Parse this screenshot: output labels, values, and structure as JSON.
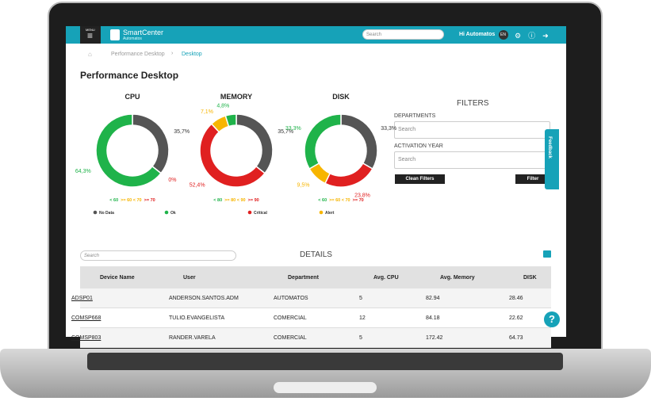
{
  "header": {
    "menu": "MENU",
    "brand": "SmartCenter",
    "brand_sub": "Automatos",
    "search": "Search",
    "user": "Hi Automatos",
    "lang": "EN"
  },
  "breadcrumb": {
    "items": [
      "Performance Desktop",
      "Desktop"
    ]
  },
  "title": "Performance Desktop",
  "donuts": [
    {
      "title": "CPU",
      "values": [
        35.7,
        0,
        0,
        64.3
      ],
      "value_labels": [
        "35,7%",
        "0%",
        null,
        "64,3%"
      ],
      "colors": [
        "#555555",
        "#e02020",
        "#f7b500",
        "#1fb34a"
      ],
      "thresholds": [
        "< 60",
        ">= 60 < 70",
        ">= 70"
      ],
      "legend": [
        {
          "name": "No Data",
          "color": "#555555"
        },
        {
          "name": "Ok",
          "color": "#1fb34a"
        }
      ]
    },
    {
      "title": "MEMORY",
      "values": [
        35.7,
        52.4,
        7.1,
        4.8
      ],
      "value_labels": [
        "35,7%",
        "52,4%",
        "7,1%",
        "4,8%"
      ],
      "colors": [
        "#555555",
        "#e02020",
        "#f7b500",
        "#1fb34a"
      ],
      "thresholds": [
        "< 80",
        ">= 80 < 90",
        ">= 90"
      ],
      "legend": [
        {
          "name": "Critical",
          "color": "#e02020"
        }
      ]
    },
    {
      "title": "DISK",
      "values": [
        33.3,
        23.8,
        9.5,
        33.3
      ],
      "value_labels": [
        "33,3%",
        "23,8%",
        "9,5%",
        "33,3%"
      ],
      "colors": [
        "#555555",
        "#e02020",
        "#f7b500",
        "#1fb34a"
      ],
      "thresholds": [
        "< 60",
        ">= 60 < 70",
        ">= 70"
      ],
      "legend": [
        {
          "name": "Alert",
          "color": "#f7b500"
        }
      ]
    }
  ],
  "filters": {
    "title": "FILTERS",
    "departments": "DEPARTMENTS",
    "departments_search": "Search",
    "year": "ACTIVATION YEAR",
    "year_search": "Search",
    "clean": "Clean Filters",
    "filter": "Filter"
  },
  "feedback": "Feedback",
  "details": {
    "search": "Search",
    "title": "DETAILS"
  },
  "table": {
    "columns": [
      "Device Name",
      "User",
      "Department",
      "Avg. CPU",
      "Avg. Memory",
      "DISK"
    ],
    "rows": [
      [
        "ADSP01",
        "ANDERSON.SANTOS.ADM",
        "AUTOMATOS",
        "5",
        "82.94",
        "28.46"
      ],
      [
        "COMSP668",
        "TULIO.EVANGELISTA",
        "COMERCIAL",
        "12",
        "84.18",
        "22.62"
      ],
      [
        "COMSP803",
        "RANDER.VARELA",
        "COMERCIAL",
        "5",
        "172.42",
        "64.73"
      ]
    ]
  }
}
